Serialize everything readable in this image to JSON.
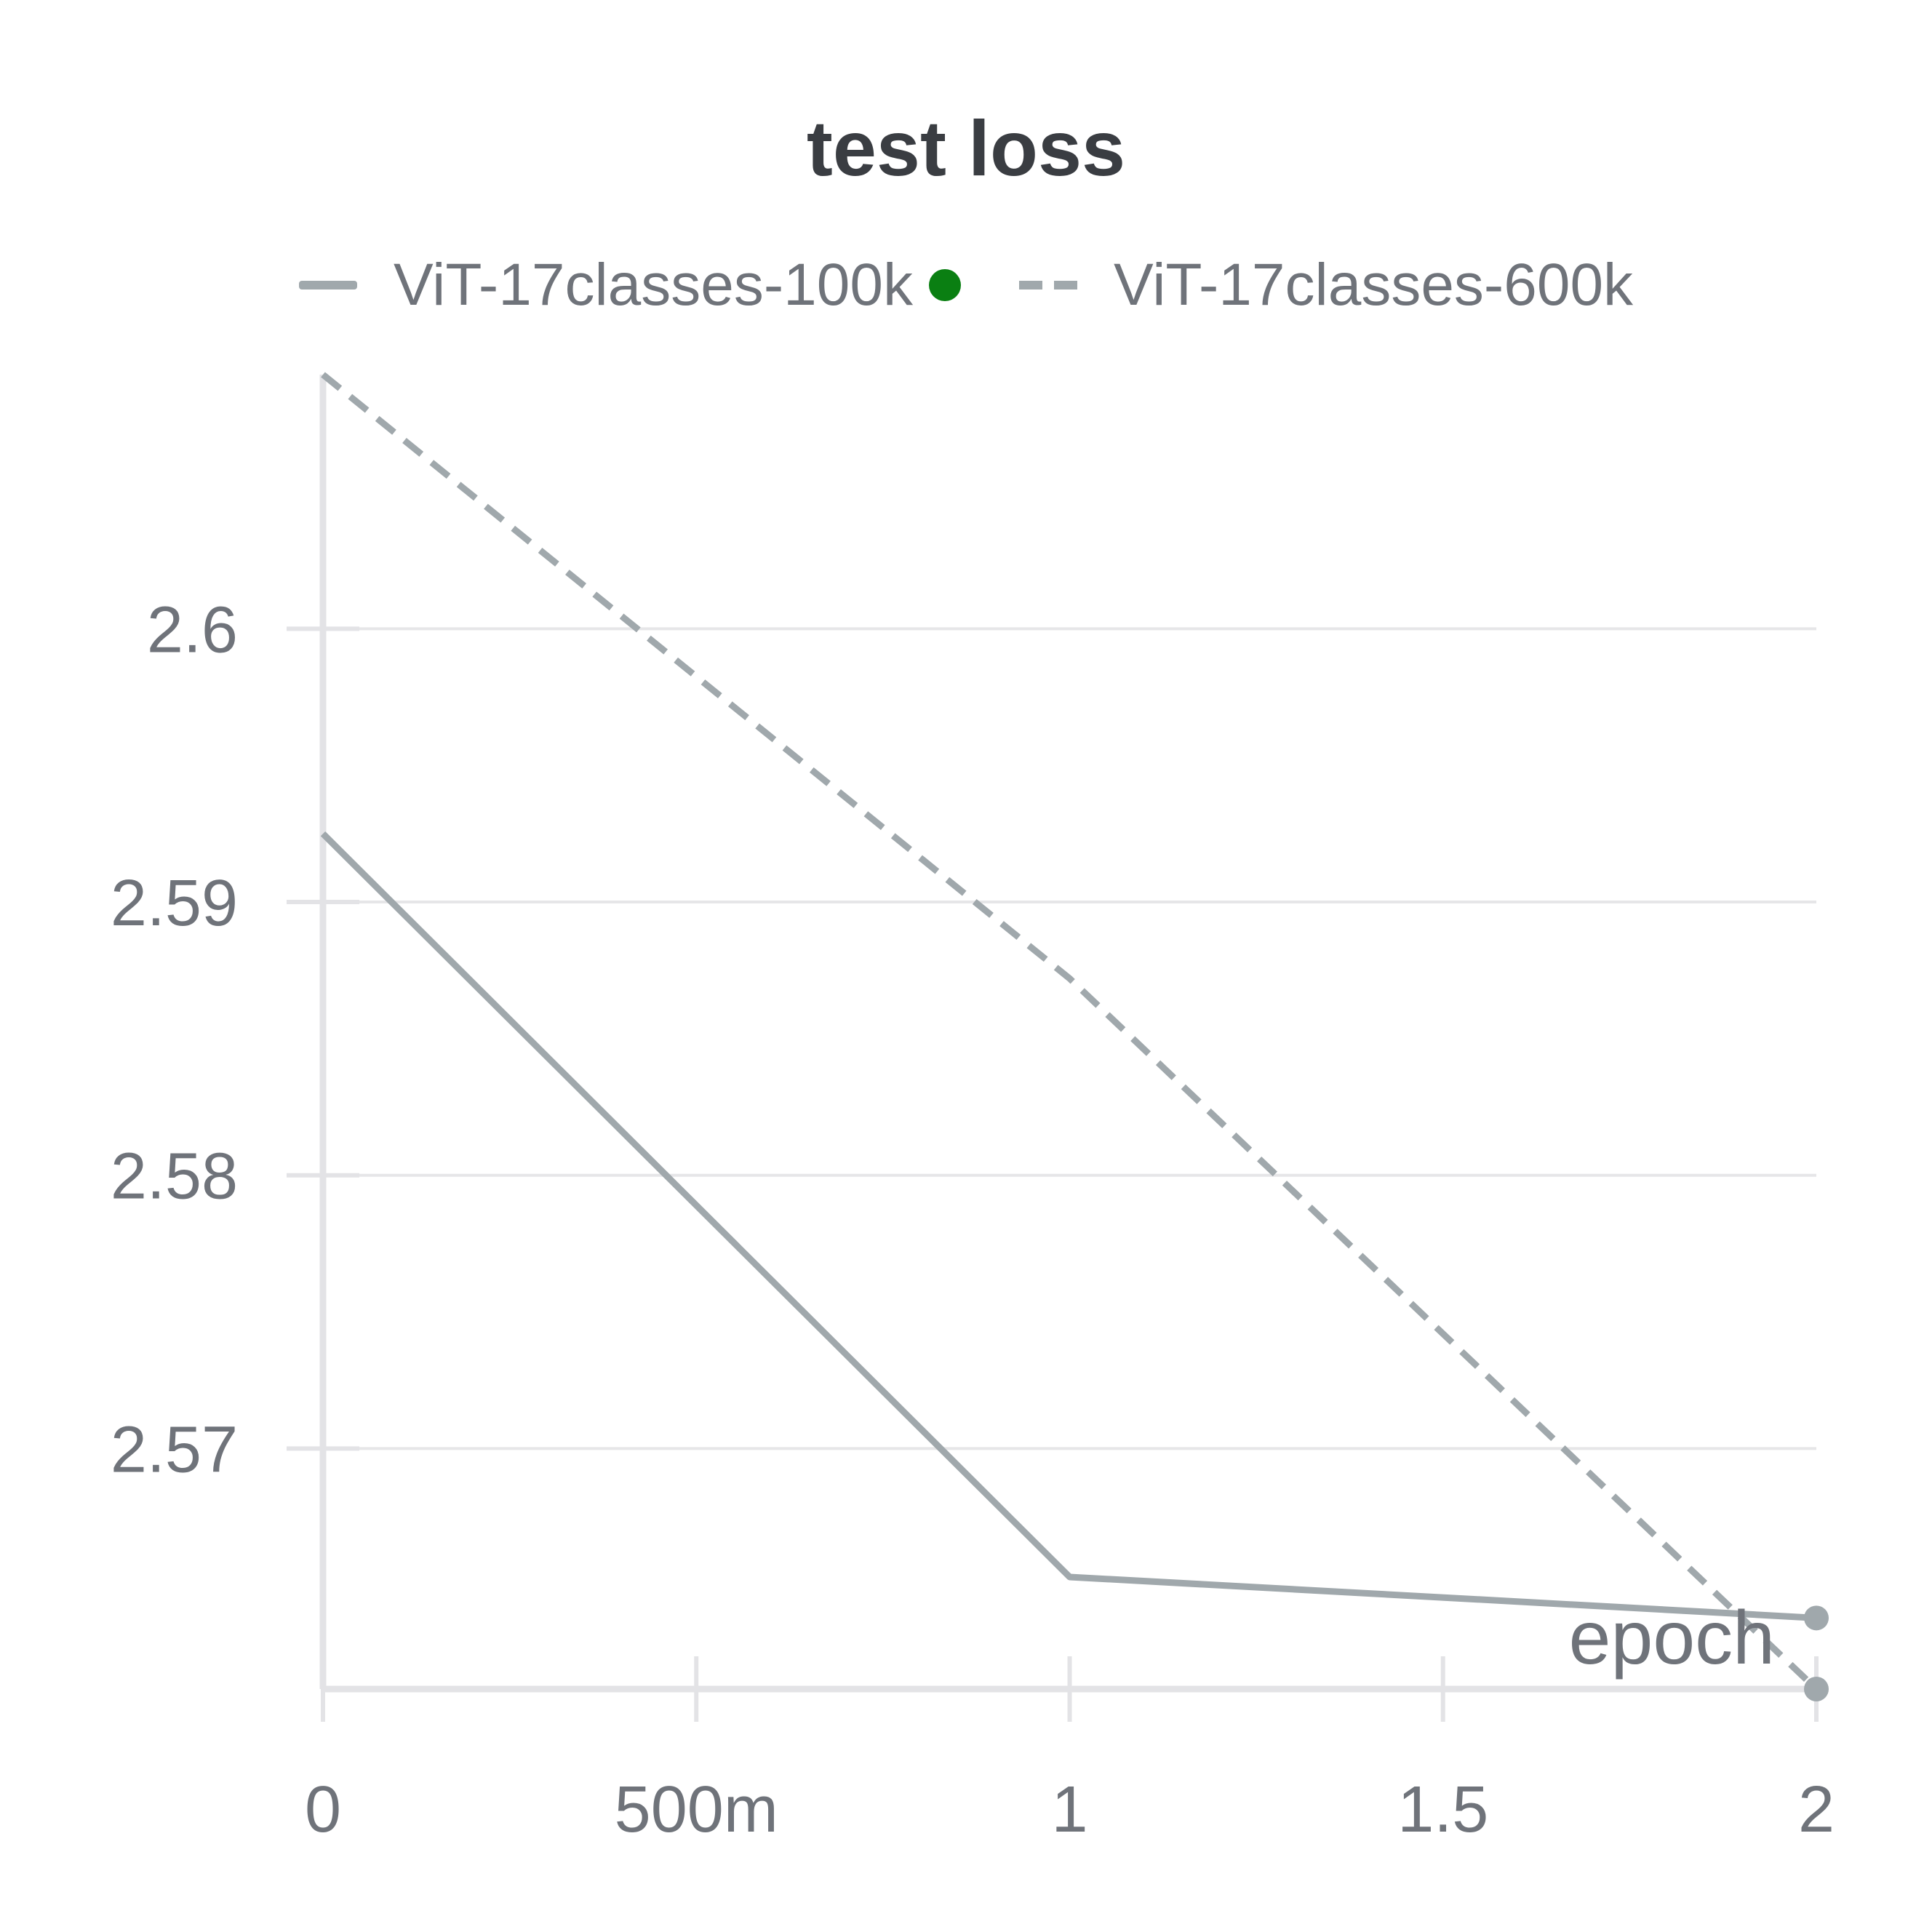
{
  "chart_data": {
    "type": "line",
    "title": "test loss",
    "xlabel": "epoch",
    "ylabel": "",
    "x": [
      0,
      1,
      2
    ],
    "xlim": [
      0,
      2
    ],
    "ylim": [
      2.5612,
      2.6093
    ],
    "x_ticks": [
      0,
      0.5,
      1,
      1.5,
      2
    ],
    "x_tick_labels": [
      "0",
      "500m",
      "1",
      "1.5",
      "2"
    ],
    "y_ticks": [
      2.57,
      2.58,
      2.59,
      2.6
    ],
    "y_tick_labels": [
      "2.57",
      "2.58",
      "2.59",
      "2.6"
    ],
    "grid": true,
    "legend_position": "top",
    "series": [
      {
        "name": "ViT-17classes-100k",
        "values": [
          2.5925,
          2.5653,
          2.5638
        ],
        "style": "solid",
        "color": "#a0a8ac",
        "marker_color": "#0a7f12"
      },
      {
        "name": "ViT-17classes-600k",
        "values": [
          2.6093,
          2.5872,
          2.5612
        ],
        "style": "dashed",
        "color": "#a0a8ac"
      }
    ]
  }
}
